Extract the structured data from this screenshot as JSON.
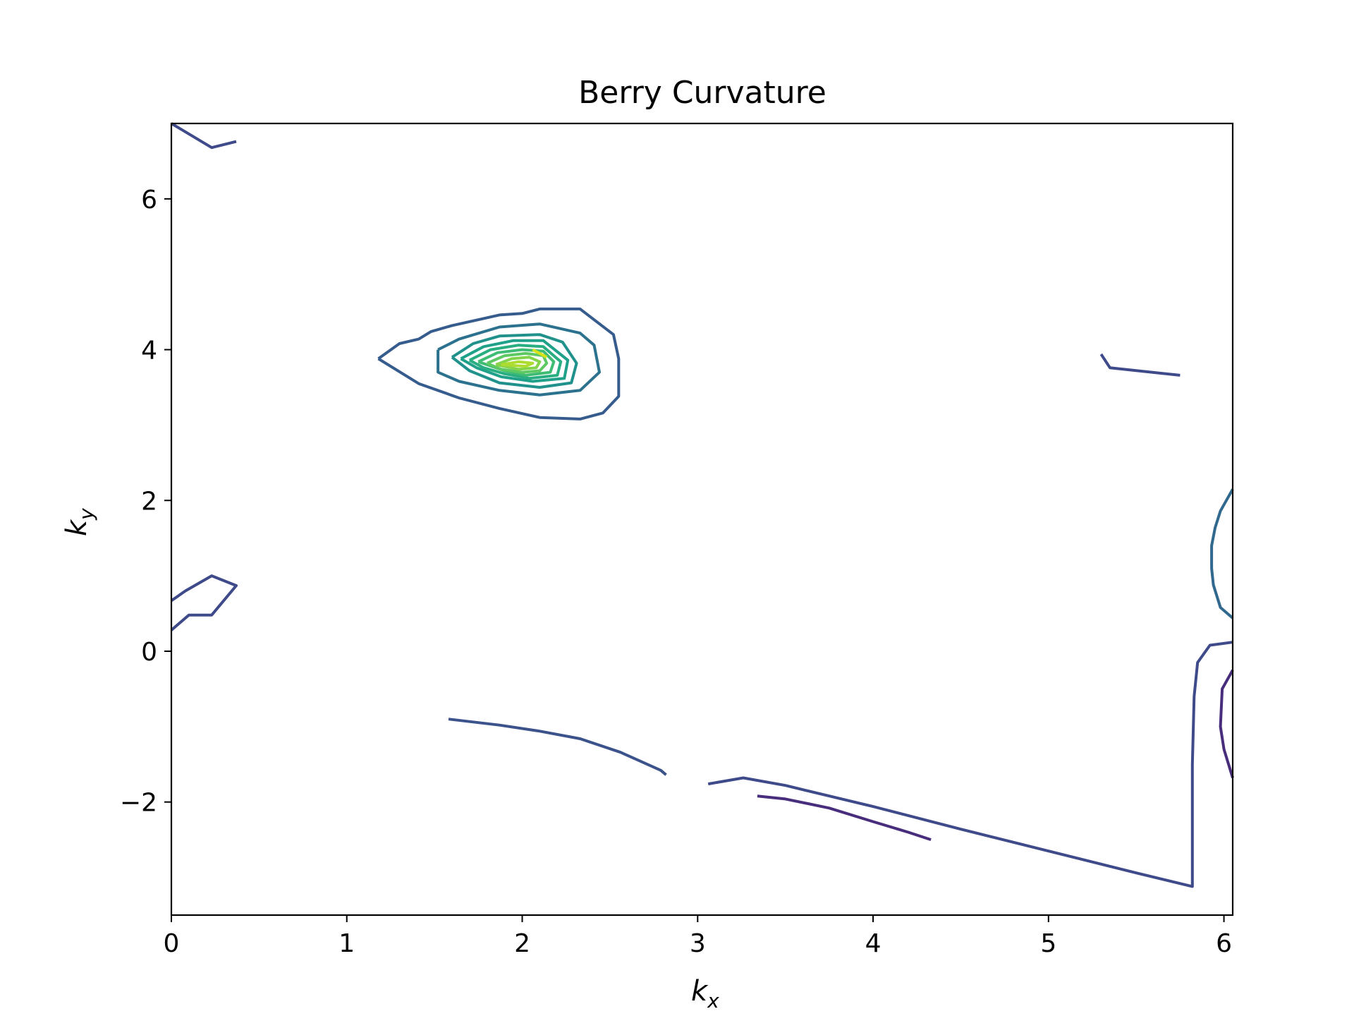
{
  "chart_data": {
    "type": "contour",
    "title": "Berry Curvature",
    "xlabel": {
      "base": "k",
      "sub": "x"
    },
    "ylabel": {
      "base": "k",
      "sub": "y"
    },
    "xlim": [
      0,
      6.05
    ],
    "ylim": [
      -3.5,
      7.0
    ],
    "xticks": [
      0,
      1,
      2,
      3,
      4,
      5,
      6
    ],
    "yticks": [
      -2,
      0,
      2,
      4,
      6
    ],
    "ytick_labels": [
      "−2",
      "0",
      "2",
      "4",
      "6"
    ],
    "grid": false,
    "legend": "none",
    "contours": [
      {
        "color": "#3e4a89",
        "points": [
          [
            0,
            7.0
          ],
          [
            0.23,
            6.68
          ],
          [
            0.37,
            6.76
          ]
        ]
      },
      {
        "color": "#3e4a89",
        "points": [
          [
            0,
            0.67
          ],
          [
            0.08,
            0.8
          ],
          [
            0.2,
            0.96
          ],
          [
            0.23,
            1.0
          ],
          [
            0.37,
            0.87
          ],
          [
            0.23,
            0.48
          ],
          [
            0.1,
            0.48
          ],
          [
            0,
            0.28
          ]
        ]
      },
      {
        "color": "#365c8d",
        "points": [
          [
            1.18,
            3.88
          ],
          [
            1.3,
            4.08
          ],
          [
            1.41,
            4.14
          ],
          [
            1.48,
            4.24
          ],
          [
            1.6,
            4.32
          ],
          [
            1.87,
            4.46
          ],
          [
            2.0,
            4.48
          ],
          [
            2.1,
            4.54
          ],
          [
            2.33,
            4.54
          ],
          [
            2.52,
            4.2
          ],
          [
            2.55,
            3.88
          ],
          [
            2.55,
            3.6
          ],
          [
            2.55,
            3.38
          ],
          [
            2.46,
            3.16
          ],
          [
            2.33,
            3.08
          ],
          [
            2.1,
            3.1
          ],
          [
            1.87,
            3.22
          ],
          [
            1.64,
            3.36
          ],
          [
            1.41,
            3.55
          ],
          [
            1.18,
            3.88
          ]
        ]
      },
      {
        "color": "#2c728e",
        "points": [
          [
            1.52,
            4.0
          ],
          [
            1.64,
            4.14
          ],
          [
            1.87,
            4.3
          ],
          [
            2.1,
            4.34
          ],
          [
            2.33,
            4.22
          ],
          [
            2.41,
            4.06
          ],
          [
            2.44,
            3.7
          ],
          [
            2.33,
            3.46
          ],
          [
            2.1,
            3.4
          ],
          [
            1.87,
            3.46
          ],
          [
            1.64,
            3.58
          ],
          [
            1.52,
            3.7
          ],
          [
            1.52,
            4.0
          ]
        ]
      },
      {
        "color": "#21918c",
        "points": [
          [
            1.6,
            3.9
          ],
          [
            1.72,
            4.08
          ],
          [
            1.87,
            4.18
          ],
          [
            2.1,
            4.2
          ],
          [
            2.23,
            4.1
          ],
          [
            2.31,
            3.82
          ],
          [
            2.28,
            3.56
          ],
          [
            2.1,
            3.5
          ],
          [
            1.87,
            3.56
          ],
          [
            1.7,
            3.72
          ],
          [
            1.6,
            3.9
          ]
        ]
      },
      {
        "color": "#1fa088",
        "points": [
          [
            1.65,
            3.88
          ],
          [
            1.78,
            4.04
          ],
          [
            1.95,
            4.12
          ],
          [
            2.12,
            4.12
          ],
          [
            2.26,
            3.86
          ],
          [
            2.24,
            3.62
          ],
          [
            2.06,
            3.58
          ],
          [
            1.88,
            3.64
          ],
          [
            1.74,
            3.76
          ],
          [
            1.65,
            3.88
          ]
        ]
      },
      {
        "color": "#28ae80",
        "points": [
          [
            1.7,
            3.86
          ],
          [
            1.82,
            4.0
          ],
          [
            1.98,
            4.06
          ],
          [
            2.12,
            4.04
          ],
          [
            2.22,
            3.84
          ],
          [
            2.2,
            3.66
          ],
          [
            2.04,
            3.62
          ],
          [
            1.9,
            3.68
          ],
          [
            1.78,
            3.76
          ],
          [
            1.7,
            3.86
          ]
        ]
      },
      {
        "color": "#3fbc73",
        "points": [
          [
            1.75,
            3.84
          ],
          [
            1.86,
            3.96
          ],
          [
            2.0,
            4.0
          ],
          [
            2.12,
            3.98
          ],
          [
            2.18,
            3.84
          ],
          [
            2.16,
            3.7
          ],
          [
            2.02,
            3.66
          ],
          [
            1.9,
            3.72
          ],
          [
            1.75,
            3.84
          ]
        ]
      },
      {
        "color": "#5ec962",
        "points": [
          [
            1.8,
            3.82
          ],
          [
            1.9,
            3.92
          ],
          [
            2.02,
            3.95
          ],
          [
            2.12,
            3.92
          ],
          [
            2.14,
            3.82
          ],
          [
            2.1,
            3.72
          ],
          [
            2.0,
            3.7
          ],
          [
            1.88,
            3.74
          ],
          [
            1.8,
            3.82
          ]
        ]
      },
      {
        "color": "#84d44b",
        "points": [
          [
            1.85,
            3.8
          ],
          [
            1.94,
            3.88
          ],
          [
            2.04,
            3.9
          ],
          [
            2.1,
            3.84
          ],
          [
            2.08,
            3.76
          ],
          [
            1.98,
            3.74
          ],
          [
            1.85,
            3.8
          ]
        ]
      },
      {
        "color": "#addc30",
        "points": [
          [
            1.88,
            3.8
          ],
          [
            1.98,
            3.84
          ],
          [
            2.06,
            3.82
          ],
          [
            2.02,
            3.78
          ],
          [
            1.88,
            3.8
          ]
        ]
      },
      {
        "color": "#d8e219",
        "points": [
          [
            2.06,
            4.0
          ],
          [
            2.14,
            3.9
          ]
        ]
      },
      {
        "color": "#3b528b",
        "points": [
          [
            1.58,
            -0.9
          ],
          [
            1.87,
            -0.98
          ],
          [
            2.1,
            -1.06
          ],
          [
            2.33,
            -1.16
          ],
          [
            2.56,
            -1.34
          ],
          [
            2.79,
            -1.58
          ],
          [
            2.82,
            -1.64
          ]
        ]
      },
      {
        "color": "#3e4a89",
        "points": [
          [
            3.06,
            -1.76
          ],
          [
            3.26,
            -1.68
          ],
          [
            3.5,
            -1.78
          ],
          [
            3.75,
            -1.92
          ],
          [
            4.0,
            -2.06
          ],
          [
            4.5,
            -2.36
          ],
          [
            5.0,
            -2.65
          ],
          [
            5.5,
            -2.94
          ],
          [
            5.82,
            -3.12
          ],
          [
            5.82,
            -1.5
          ],
          [
            5.83,
            -0.6
          ],
          [
            5.85,
            -0.15
          ],
          [
            5.92,
            0.08
          ],
          [
            6.05,
            0.12
          ]
        ]
      },
      {
        "color": "#472d7b",
        "points": [
          [
            3.34,
            -1.92
          ],
          [
            3.5,
            -1.96
          ],
          [
            3.75,
            -2.08
          ],
          [
            4.0,
            -2.26
          ],
          [
            4.2,
            -2.4
          ],
          [
            4.33,
            -2.5
          ]
        ]
      },
      {
        "color": "#472d7b",
        "points": [
          [
            6.05,
            -0.25
          ],
          [
            5.99,
            -0.5
          ],
          [
            5.98,
            -1.0
          ],
          [
            6.0,
            -1.3
          ],
          [
            6.05,
            -1.68
          ]
        ]
      },
      {
        "color": "#3e4a89",
        "points": [
          [
            5.3,
            3.94
          ],
          [
            5.35,
            3.76
          ],
          [
            5.75,
            3.66
          ]
        ]
      },
      {
        "color": "#31688e",
        "points": [
          [
            6.05,
            2.15
          ],
          [
            5.98,
            1.86
          ],
          [
            5.95,
            1.64
          ],
          [
            5.93,
            1.4
          ],
          [
            5.93,
            1.1
          ],
          [
            5.94,
            0.88
          ],
          [
            5.98,
            0.58
          ],
          [
            6.05,
            0.44
          ]
        ]
      }
    ]
  }
}
